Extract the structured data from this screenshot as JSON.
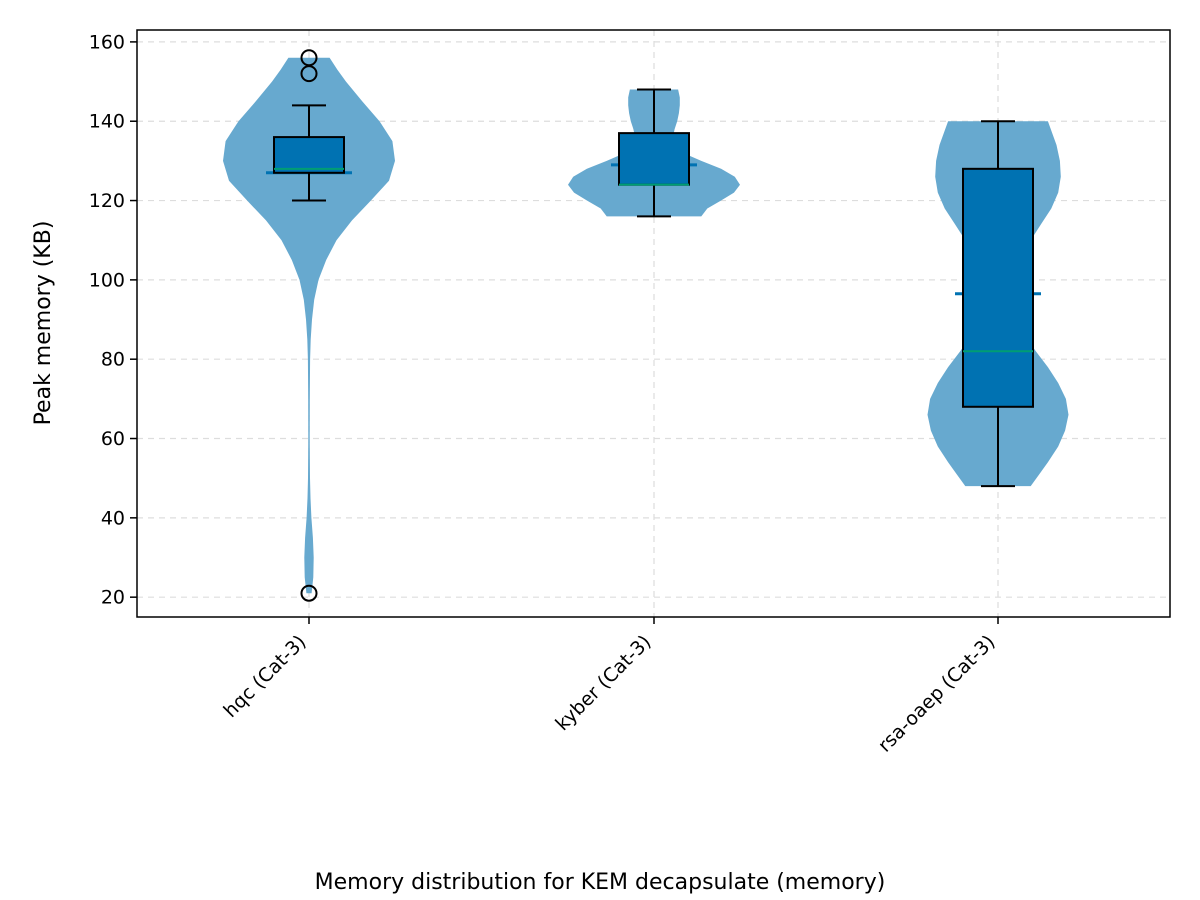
{
  "chart_data": {
    "type": "violin",
    "title": "",
    "caption": "Memory distribution for KEM decapsulate (memory)",
    "xlabel": "",
    "ylabel": "Peak memory (KB)",
    "ylim": [
      15,
      163
    ],
    "yticks": [
      20,
      40,
      60,
      80,
      100,
      120,
      140,
      160
    ],
    "grid": true,
    "categories": [
      "hqc (Cat-3)",
      "kyber (Cat-3)",
      "rsa-oaep (Cat-3)"
    ],
    "series": [
      {
        "category": "hqc (Cat-3)",
        "min": 21,
        "max": 156,
        "mean": 127,
        "box": {
          "q1": 127,
          "median": 128,
          "q3": 136
        },
        "whiskers": [
          120,
          144
        ],
        "outliers": [
          21,
          152,
          156
        ],
        "density": [
          [
            156,
            0.24
          ],
          [
            153,
            0.33
          ],
          [
            150,
            0.43
          ],
          [
            145,
            0.62
          ],
          [
            140,
            0.82
          ],
          [
            135,
            0.97
          ],
          [
            130,
            1.0
          ],
          [
            125,
            0.93
          ],
          [
            120,
            0.72
          ],
          [
            115,
            0.5
          ],
          [
            110,
            0.32
          ],
          [
            105,
            0.2
          ],
          [
            100,
            0.11
          ],
          [
            95,
            0.06
          ],
          [
            90,
            0.035
          ],
          [
            85,
            0.02
          ],
          [
            80,
            0.013
          ],
          [
            70,
            0.009
          ],
          [
            60,
            0.008
          ],
          [
            50,
            0.012
          ],
          [
            45,
            0.018
          ],
          [
            40,
            0.028
          ],
          [
            35,
            0.045
          ],
          [
            30,
            0.055
          ],
          [
            25,
            0.05
          ],
          [
            21,
            0.03
          ]
        ]
      },
      {
        "category": "kyber (Cat-3)",
        "min": 116,
        "max": 148,
        "mean": 129,
        "box": {
          "q1": 124,
          "median": 124,
          "q3": 137
        },
        "whiskers": [
          116,
          148
        ],
        "outliers": [],
        "density": [
          [
            148,
            0.28
          ],
          [
            146,
            0.3
          ],
          [
            144,
            0.3
          ],
          [
            142,
            0.29
          ],
          [
            140,
            0.27
          ],
          [
            138,
            0.24
          ],
          [
            136,
            0.22
          ],
          [
            134,
            0.25
          ],
          [
            132,
            0.34
          ],
          [
            130,
            0.55
          ],
          [
            128,
            0.78
          ],
          [
            126,
            0.94
          ],
          [
            124,
            1.0
          ],
          [
            122,
            0.93
          ],
          [
            120,
            0.78
          ],
          [
            118,
            0.62
          ],
          [
            116,
            0.55
          ]
        ]
      },
      {
        "category": "rsa-oaep (Cat-3)",
        "min": 48,
        "max": 140,
        "mean": 96.5,
        "box": {
          "q1": 68,
          "median": 82,
          "q3": 128
        },
        "whiskers": [
          48,
          140
        ],
        "outliers": [],
        "density": [
          [
            140,
            0.58
          ],
          [
            137,
            0.63
          ],
          [
            134,
            0.68
          ],
          [
            130,
            0.72
          ],
          [
            126,
            0.73
          ],
          [
            122,
            0.7
          ],
          [
            118,
            0.62
          ],
          [
            114,
            0.5
          ],
          [
            110,
            0.38
          ],
          [
            106,
            0.28
          ],
          [
            102,
            0.21
          ],
          [
            98,
            0.18
          ],
          [
            94,
            0.18
          ],
          [
            90,
            0.22
          ],
          [
            86,
            0.31
          ],
          [
            82,
            0.44
          ],
          [
            78,
            0.58
          ],
          [
            74,
            0.7
          ],
          [
            70,
            0.79
          ],
          [
            66,
            0.82
          ],
          [
            62,
            0.78
          ],
          [
            58,
            0.7
          ],
          [
            54,
            0.58
          ],
          [
            51,
            0.48
          ],
          [
            48,
            0.38
          ]
        ]
      }
    ],
    "colors": {
      "violin": "#67a9cf",
      "box_fill": "#0072b2",
      "box_edge": "#000000",
      "median": "#009e73",
      "mean": "#0072b2",
      "grid": "#dddddd",
      "axis": "#000000"
    }
  }
}
